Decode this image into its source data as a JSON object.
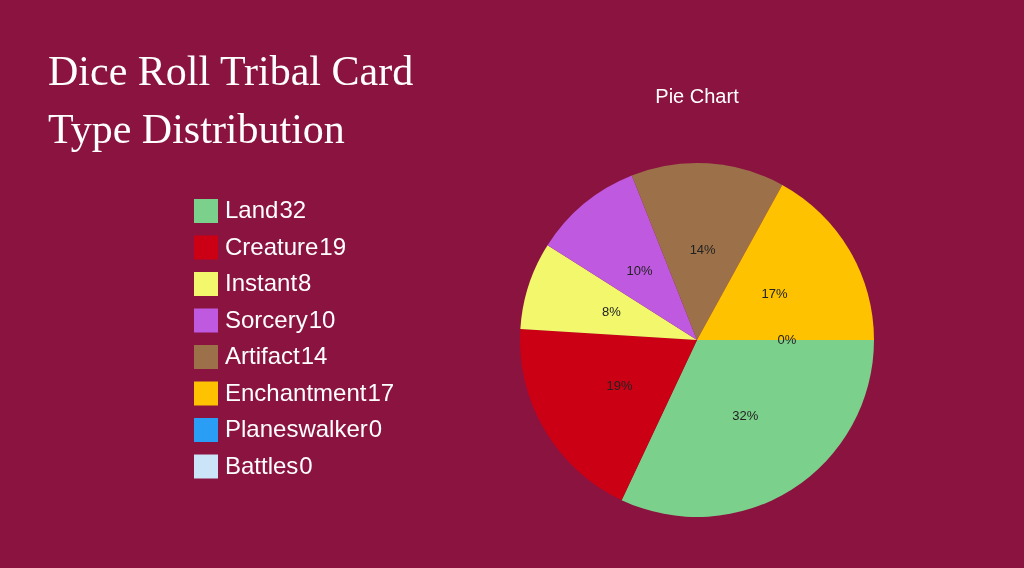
{
  "chart_data": {
    "type": "pie",
    "title": "Dice Roll Tribal Card Type Distribution",
    "subtitle": "Pie Chart",
    "categories": [
      "Land",
      "Creature",
      "Instant",
      "Sorcery",
      "Artifact",
      "Enchantment",
      "Planeswalker",
      "Battles"
    ],
    "values": [
      32,
      19,
      8,
      10,
      14,
      17,
      0,
      0
    ],
    "colors": [
      "#7bd18b",
      "#cc0014",
      "#f2f76b",
      "#bf5ae0",
      "#9c714a",
      "#ffc200",
      "#2a9df4",
      "#cce4f7"
    ],
    "value_labels": [
      "32%",
      "19%",
      "8%",
      "10%",
      "14%",
      "17%",
      "0%",
      null
    ],
    "annotations": [
      "32",
      "19",
      "8",
      "10",
      "14",
      "17",
      "0",
      "0"
    ],
    "legend": "left"
  }
}
